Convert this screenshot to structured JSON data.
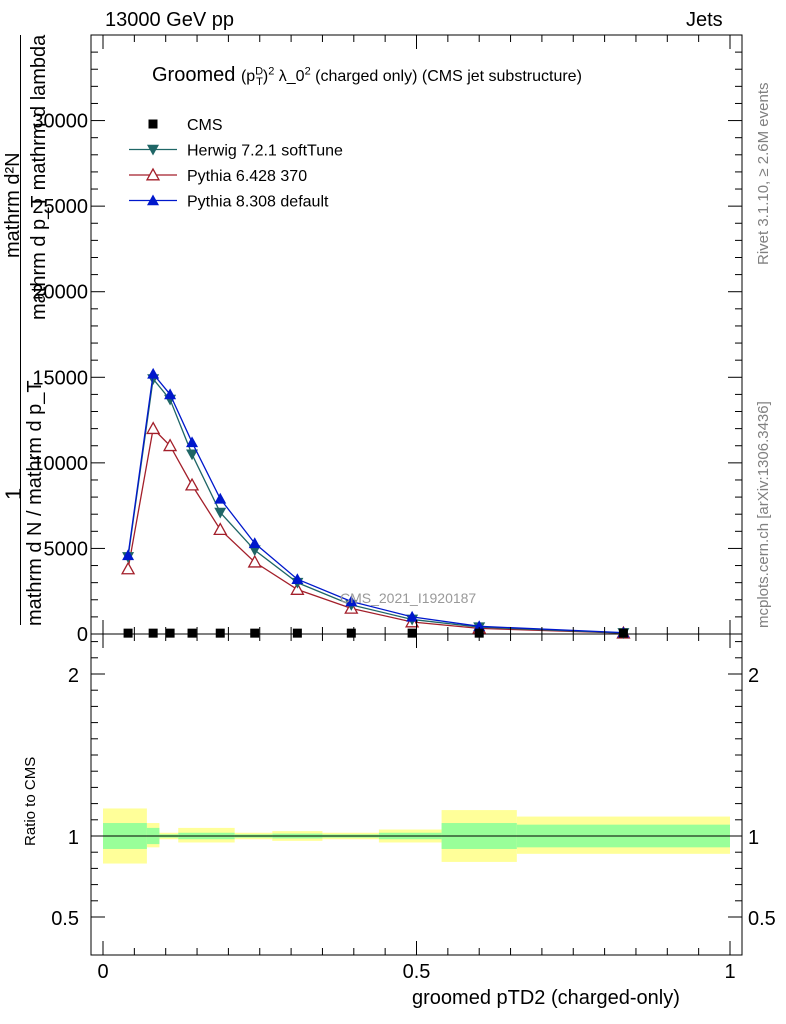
{
  "header": {
    "left": "13000 GeV pp",
    "right": "Jets"
  },
  "side": {
    "rivet": "Rivet 3.1.10, ≥ 2.6M events",
    "mcplots": "mcplots.cern.ch [arXiv:1306.3436]"
  },
  "title": {
    "main": "Groomed",
    "pt": "(p",
    "sup_d": "D",
    "sub_t": "T",
    "sq": ")",
    "exp": "2",
    "lambda": "λ_0",
    "lambda_exp": "2",
    "rest": " (charged only) (CMS jet substructure)"
  },
  "watermark": "CMS_2021_I1920187",
  "ylabel": {
    "one": "1",
    "den": "mathrm d N / mathrm d p_T",
    "num1": "mathrm d²N",
    "num2": "mathrm d p_T mathrm d lambda"
  },
  "ratio_ylabel": "Ratio to CMS",
  "xlabel": "groomed pTD2 (charged-only)",
  "colors": {
    "cms": "#000000",
    "herwig": "#1f6666",
    "py6": "#a31f2a",
    "py8": "#0018cc",
    "band_inner": "#99ff99",
    "band_outer": "#ffff99"
  },
  "chart_data": [
    {
      "type": "line",
      "panel": "main",
      "xlim": [
        0,
        1
      ],
      "ylim": [
        0,
        35000
      ],
      "yticks": [
        0,
        5000,
        10000,
        15000,
        20000,
        25000,
        30000
      ],
      "ytick_labels": [
        "0",
        "5000",
        "10000",
        "15000",
        "20000",
        "25000",
        "30000"
      ],
      "legend_position": "top-left",
      "series": [
        {
          "name": "CMS",
          "marker": "square",
          "x": [
            0.04,
            0.08,
            0.107,
            0.142,
            0.187,
            0.242,
            0.31,
            0.396,
            0.493,
            0.6,
            0.83
          ],
          "y": [
            50,
            50,
            50,
            50,
            50,
            50,
            50,
            50,
            50,
            50,
            50
          ]
        },
        {
          "name": "Herwig 7.2.1 softTune",
          "marker": "triangle-down",
          "x": [
            0.04,
            0.08,
            0.107,
            0.142,
            0.187,
            0.242,
            0.31,
            0.396,
            0.493,
            0.6,
            0.83
          ],
          "y": [
            4500,
            14900,
            13700,
            10500,
            7100,
            4900,
            3000,
            1700,
            850,
            400,
            60
          ]
        },
        {
          "name": "Pythia 6.428 370",
          "marker": "triangle-open",
          "x": [
            0.04,
            0.08,
            0.107,
            0.142,
            0.187,
            0.242,
            0.31,
            0.396,
            0.493,
            0.6,
            0.83
          ],
          "y": [
            3800,
            12000,
            11000,
            8700,
            6100,
            4200,
            2600,
            1500,
            700,
            330,
            50
          ]
        },
        {
          "name": "Pythia 8.308 default",
          "marker": "triangle-up",
          "x": [
            0.04,
            0.08,
            0.107,
            0.142,
            0.187,
            0.242,
            0.31,
            0.396,
            0.493,
            0.6,
            0.83
          ],
          "y": [
            4600,
            15200,
            14000,
            11200,
            7900,
            5300,
            3200,
            1900,
            1000,
            450,
            80
          ]
        }
      ]
    },
    {
      "type": "area",
      "panel": "ratio",
      "xlim": [
        0,
        1
      ],
      "ylim": [
        0.4,
        2.3
      ],
      "yticks": [
        0.5,
        1,
        2
      ],
      "ytick_labels": [
        "0.5",
        "1",
        "2"
      ],
      "xticks": [
        0,
        0.5,
        1
      ],
      "xtick_labels": [
        "0",
        "0.5",
        "1"
      ],
      "bins": [
        {
          "lo": 0.0,
          "hi": 0.07,
          "inner": [
            0.92,
            1.08
          ],
          "outer": [
            0.83,
            1.17
          ]
        },
        {
          "lo": 0.07,
          "hi": 0.09,
          "inner": [
            0.95,
            1.05
          ],
          "outer": [
            0.93,
            1.08
          ]
        },
        {
          "lo": 0.09,
          "hi": 0.12,
          "inner": [
            0.99,
            1.01
          ],
          "outer": [
            0.98,
            1.02
          ]
        },
        {
          "lo": 0.12,
          "hi": 0.21,
          "inner": [
            0.98,
            1.02
          ],
          "outer": [
            0.96,
            1.05
          ]
        },
        {
          "lo": 0.21,
          "hi": 0.27,
          "inner": [
            0.99,
            1.01
          ],
          "outer": [
            0.98,
            1.02
          ]
        },
        {
          "lo": 0.27,
          "hi": 0.35,
          "inner": [
            0.985,
            1.015
          ],
          "outer": [
            0.97,
            1.03
          ]
        },
        {
          "lo": 0.35,
          "hi": 0.44,
          "inner": [
            0.99,
            1.01
          ],
          "outer": [
            0.98,
            1.02
          ]
        },
        {
          "lo": 0.44,
          "hi": 0.54,
          "inner": [
            0.98,
            1.02
          ],
          "outer": [
            0.96,
            1.04
          ]
        },
        {
          "lo": 0.54,
          "hi": 0.66,
          "inner": [
            0.92,
            1.08
          ],
          "outer": [
            0.84,
            1.16
          ]
        },
        {
          "lo": 0.66,
          "hi": 1.0,
          "inner": [
            0.93,
            1.07
          ],
          "outer": [
            0.89,
            1.12
          ]
        }
      ]
    }
  ]
}
